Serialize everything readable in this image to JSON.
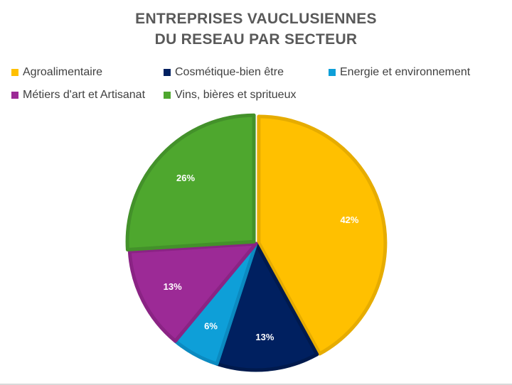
{
  "chart_data": {
    "type": "pie",
    "title_lines": [
      "ENTREPRISES VAUCLUSIENNES",
      "DU RESEAU PAR SECTEUR"
    ],
    "categories": [
      "Agroalimentaire",
      "Cosmétique-bien être",
      "Energie et environnement",
      "Métiers d'art et Artisanat",
      "Vins, bières et spritueux"
    ],
    "values": [
      42,
      13,
      6,
      13,
      26
    ],
    "labels": [
      "42%",
      "13%",
      "6%",
      "13%",
      "26%"
    ],
    "colors": [
      "#ffc000",
      "#002060",
      "#0e9fd8",
      "#9c2a96",
      "#4ea72e"
    ],
    "border_colors": [
      "#e6ac00",
      "#001a4d",
      "#0b8ac0",
      "#8a2384",
      "#43912a"
    ],
    "legend_position": "top"
  }
}
